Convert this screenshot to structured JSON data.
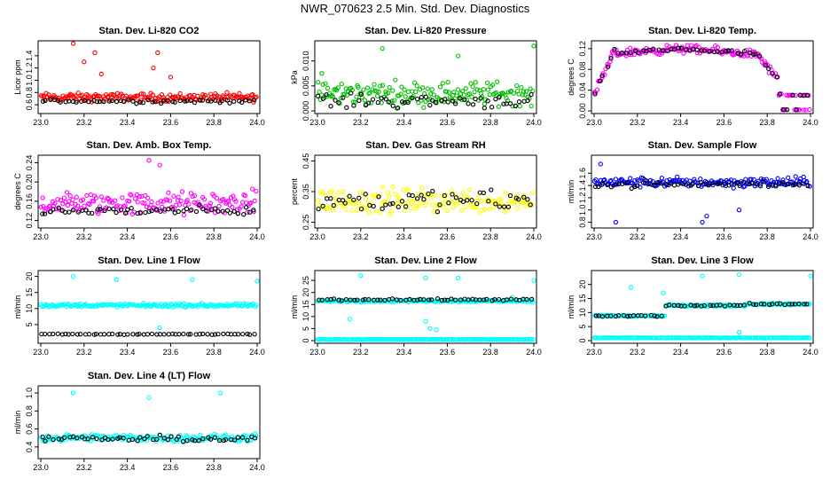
{
  "figure_title": "NWR_070623  2.5 Min. Std. Dev. Diagnostics",
  "chart_data": [
    {
      "type": "scatter",
      "title": "Stan. Dev. Li-820 CO2",
      "ylabel": "Licor ppm",
      "xlim": [
        23.0,
        24.0
      ],
      "ylim": [
        0.5,
        1.6
      ],
      "xticks": [
        "23.0",
        "23.2",
        "23.4",
        "23.6",
        "23.8",
        "24.0"
      ],
      "yticks": [
        0.6,
        0.8,
        1.0,
        1.2,
        1.4
      ],
      "ytick_labels": [
        "0.6",
        "0.8",
        "1.0",
        "1.2",
        "1.4"
      ],
      "series": [
        {
          "color": "#ff0000",
          "base": 0.72,
          "spread": 0.1,
          "outliers": [
            [
              23.15,
              1.6
            ],
            [
              23.2,
              1.3
            ],
            [
              23.25,
              1.45
            ],
            [
              23.28,
              1.1
            ],
            [
              23.54,
              1.45
            ],
            [
              23.52,
              1.2
            ],
            [
              23.6,
              1.05
            ]
          ]
        },
        {
          "color": "#000000",
          "base": 0.66,
          "spread": 0.05,
          "outliers": []
        }
      ]
    },
    {
      "type": "scatter",
      "title": "Stan. Dev. Li-820 Pressure",
      "ylabel": "kPa",
      "xlim": [
        23.0,
        24.0
      ],
      "ylim": [
        0.0,
        0.0135
      ],
      "xticks": [
        "23.0",
        "23.2",
        "23.4",
        "23.6",
        "23.8",
        "24.0"
      ],
      "yticks": [
        0.0,
        0.005,
        0.01
      ],
      "ytick_labels": [
        "0.000",
        "0.005",
        "0.010"
      ],
      "series": [
        {
          "color": "#00c000",
          "base": 0.0035,
          "spread": 0.0035,
          "outliers": [
            [
              23.02,
              0.0075
            ],
            [
              23.3,
              0.0125
            ],
            [
              23.65,
              0.011
            ],
            [
              24.0,
              0.013
            ]
          ]
        },
        {
          "color": "#000000",
          "base": 0.002,
          "spread": 0.002,
          "outliers": []
        }
      ]
    },
    {
      "type": "scatter",
      "title": "Stan. Dev. Li-820 Temp.",
      "ylabel": "degrees C",
      "xlim": [
        23.0,
        24.0
      ],
      "ylim": [
        0.0,
        0.13
      ],
      "xticks": [
        "23.0",
        "23.2",
        "23.4",
        "23.6",
        "23.8",
        "24.0"
      ],
      "yticks": [
        0.0,
        0.04,
        0.08,
        0.12
      ],
      "ytick_labels": [
        "0.00",
        "0.04",
        "0.08",
        "0.12"
      ],
      "series": [
        {
          "color": "#ff00ff",
          "profile": "temp",
          "spread": 0.012,
          "outliers": []
        },
        {
          "color": "#000000",
          "profile": "temp",
          "spread": 0.006,
          "outliers": []
        }
      ]
    },
    {
      "type": "scatter",
      "title": "Stan. Dev. Amb. Box Temp.",
      "ylabel": "degrees C",
      "xlim": [
        23.0,
        24.0
      ],
      "ylim": [
        0.11,
        0.25
      ],
      "xticks": [
        "23.0",
        "23.2",
        "23.4",
        "23.6",
        "23.8",
        "24.0"
      ],
      "yticks": [
        0.12,
        0.16,
        0.2,
        0.24
      ],
      "ytick_labels": [
        "0.12",
        "0.16",
        "0.20",
        "0.24"
      ],
      "series": [
        {
          "color": "#ff00ff",
          "base": 0.155,
          "spread": 0.035,
          "outliers": [
            [
              23.5,
              0.245
            ],
            [
              23.55,
              0.235
            ]
          ]
        },
        {
          "color": "#000000",
          "base": 0.14,
          "spread": 0.015,
          "outliers": []
        }
      ]
    },
    {
      "type": "scatter",
      "title": "Stan. Dev. Gas Stream RH",
      "ylabel": "percent",
      "xlim": [
        23.0,
        24.0
      ],
      "ylim": [
        0.24,
        0.46
      ],
      "xticks": [
        "23.0",
        "23.2",
        "23.4",
        "23.6",
        "23.8",
        "24.0"
      ],
      "yticks": [
        0.25,
        0.35,
        0.45
      ],
      "ytick_labels": [
        "0.25",
        "0.35",
        "0.45"
      ],
      "series": [
        {
          "color": "#ffff00",
          "base": 0.32,
          "spread": 0.06,
          "outliers": []
        },
        {
          "color": "#000000",
          "base": 0.32,
          "spread": 0.05,
          "outliers": []
        }
      ]
    },
    {
      "type": "scatter",
      "title": "Stan. Dev. Sample Flow",
      "ylabel": "ml/min",
      "xlim": [
        23.0,
        24.0
      ],
      "ylim": [
        0.75,
        1.85
      ],
      "xticks": [
        "23.0",
        "23.2",
        "23.4",
        "23.6",
        "23.8",
        "24.0"
      ],
      "yticks": [
        0.8,
        1.0,
        1.2,
        1.4,
        1.6
      ],
      "ytick_labels": [
        "0.8",
        "1.0",
        "1.2",
        "1.4",
        "1.6"
      ],
      "series": [
        {
          "color": "#0000ff",
          "base": 1.45,
          "spread": 0.12,
          "outliers": [
            [
              23.03,
              1.75
            ],
            [
              23.1,
              0.8
            ],
            [
              23.5,
              0.8
            ],
            [
              23.52,
              0.9
            ],
            [
              23.67,
              1.0
            ]
          ]
        },
        {
          "color": "#000000",
          "base": 1.42,
          "spread": 0.08,
          "outliers": []
        }
      ]
    },
    {
      "type": "scatter",
      "title": "Stan. Dev. Line 1 Flow",
      "ylabel": "ml/min",
      "xlim": [
        23.0,
        24.0
      ],
      "ylim": [
        0,
        21
      ],
      "xticks": [
        "23.0",
        "23.2",
        "23.4",
        "23.6",
        "23.8",
        "24.0"
      ],
      "yticks": [
        5,
        10,
        15,
        20
      ],
      "ytick_labels": [
        "5",
        "10",
        "15",
        "20"
      ],
      "series": [
        {
          "color": "#00ffff",
          "base": 11,
          "spread": 0.8,
          "outliers": [
            [
              23.15,
              20
            ],
            [
              23.35,
              19
            ],
            [
              23.55,
              4
            ],
            [
              23.7,
              19
            ],
            [
              24.0,
              18.5
            ]
          ]
        },
        {
          "color": "#000000",
          "base": 2,
          "spread": 0.2,
          "outliers": []
        }
      ]
    },
    {
      "type": "scatter",
      "title": "Stan. Dev. Line 2 Flow",
      "ylabel": "ml/min",
      "xlim": [
        23.0,
        24.0
      ],
      "ylim": [
        0,
        28
      ],
      "xticks": [
        "23.0",
        "23.2",
        "23.4",
        "23.6",
        "23.8",
        "24.0"
      ],
      "yticks": [
        0,
        5,
        10,
        15,
        20,
        25
      ],
      "ytick_labels": [
        "0",
        "5",
        "10",
        "15",
        "20",
        "25"
      ],
      "series": [
        {
          "color": "#00ffff",
          "base": 16.5,
          "spread": 0.7,
          "outliers": [
            [
              23.15,
              9
            ],
            [
              23.5,
              8
            ],
            [
              23.52,
              5
            ],
            [
              23.55,
              4.5
            ],
            [
              23.9,
              18
            ]
          ]
        },
        {
          "color": "#00ffff",
          "base": 0.5,
          "spread": 0.15,
          "outliers": [
            [
              23.2,
              27
            ],
            [
              23.5,
              26
            ],
            [
              23.65,
              26
            ],
            [
              24.0,
              25
            ]
          ]
        },
        {
          "color": "#000000",
          "base": 17,
          "spread": 0.5,
          "outliers": []
        }
      ]
    },
    {
      "type": "scatter",
      "title": "Stan. Dev. Line 3 Flow",
      "ylabel": "ml/min",
      "xlim": [
        23.0,
        24.0
      ],
      "ylim": [
        0,
        24
      ],
      "xticks": [
        "23.0",
        "23.2",
        "23.4",
        "23.6",
        "23.8",
        "24.0"
      ],
      "yticks": [
        0,
        5,
        10,
        15,
        20
      ],
      "ytick_labels": [
        "0",
        "5",
        "10",
        "15",
        "20"
      ],
      "series": [
        {
          "color": "#00ffff",
          "profile": "line3",
          "spread": 0.5,
          "outliers": [
            [
              23.17,
              19
            ],
            [
              23.32,
              17
            ],
            [
              23.5,
              23
            ],
            [
              23.67,
              23.5
            ],
            [
              23.67,
              3
            ],
            [
              24.0,
              23
            ]
          ]
        },
        {
          "color": "#00ffff",
          "base": 1.0,
          "spread": 0.15,
          "outliers": []
        },
        {
          "color": "#000000",
          "profile": "line3",
          "spread": 0.4,
          "outliers": []
        }
      ]
    },
    {
      "type": "scatter",
      "title": "Stan. Dev. Line 4 (LT) Flow",
      "ylabel": "ml/min",
      "xlim": [
        23.0,
        24.0
      ],
      "ylim": [
        0.3,
        1.05
      ],
      "xticks": [
        "23.0",
        "23.2",
        "23.4",
        "23.6",
        "23.8",
        "24.0"
      ],
      "yticks": [
        0.4,
        0.6,
        0.8,
        1.0
      ],
      "ytick_labels": [
        "0.4",
        "0.6",
        "0.8",
        "1.0"
      ],
      "series": [
        {
          "color": "#00ffff",
          "base": 0.5,
          "spread": 0.06,
          "outliers": [
            [
              23.15,
              1.0
            ],
            [
              23.5,
              0.95
            ],
            [
              23.83,
              1.0
            ]
          ]
        },
        {
          "color": "#000000",
          "base": 0.49,
          "spread": 0.05,
          "outliers": []
        }
      ]
    }
  ]
}
